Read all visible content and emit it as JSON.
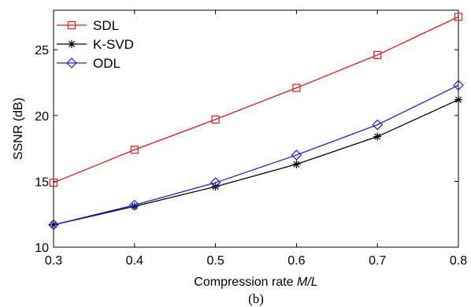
{
  "chart_data": {
    "type": "line",
    "x": [
      0.3,
      0.4,
      0.5,
      0.6,
      0.7,
      0.8
    ],
    "series": [
      {
        "name": "SDL",
        "color": "#e31a1c",
        "marker": "square",
        "values": [
          14.9,
          17.4,
          19.7,
          22.1,
          24.6,
          27.5
        ]
      },
      {
        "name": "K-SVD",
        "color": "#000000",
        "marker": "star",
        "values": [
          11.7,
          13.1,
          14.6,
          16.3,
          18.4,
          21.2
        ]
      },
      {
        "name": "ODL",
        "color": "#1f1fd1",
        "marker": "diamond",
        "values": [
          11.7,
          13.2,
          14.9,
          17.0,
          19.3,
          22.3
        ]
      }
    ],
    "xlabel_text": "Compression rate ",
    "xlabel_italic": "M/L",
    "ylabel": "SSNR (dB)",
    "xlim": [
      0.3,
      0.8
    ],
    "ylim": [
      10,
      28
    ],
    "xticks": [
      "0.3",
      "0.4",
      "0.5",
      "0.6",
      "0.7",
      "0.8"
    ],
    "yticks": [
      "10",
      "15",
      "20",
      "25"
    ],
    "grid": false,
    "legend_position": "top-left"
  },
  "caption": "(b)"
}
